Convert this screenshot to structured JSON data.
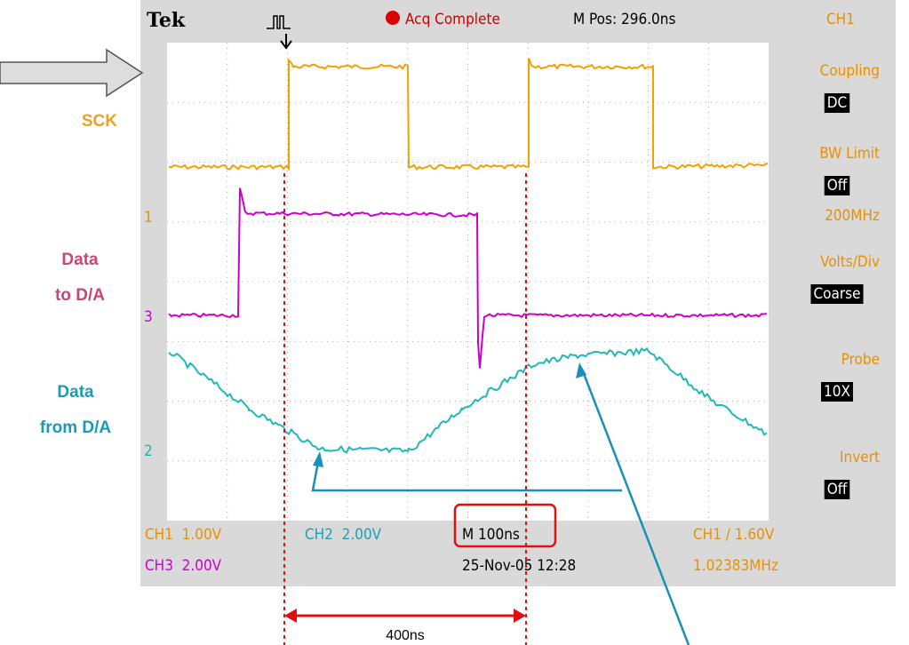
{
  "header": {
    "brand": "Tek",
    "status": "Acq Complete",
    "position": "M Pos: 296.0ns",
    "channel": "CH1"
  },
  "menu": [
    {
      "label": "Coupling",
      "value": "DC"
    },
    {
      "label": "BW Limit",
      "value": "Off",
      "extra": "200MHz"
    },
    {
      "label": "Volts/Div",
      "value": "Coarse"
    },
    {
      "label": "Probe",
      "value": "10X"
    },
    {
      "label": "Invert",
      "value": "Off"
    }
  ],
  "markers": [
    "1",
    "3",
    "2"
  ],
  "footer": {
    "ch1": "CH1  1.00V",
    "ch2": "CH2  2.00V",
    "timebase": "M 100ns",
    "trigger": "CH1 ∕ 1.60V",
    "ch3": "CH3  2.00V",
    "date": "25-Nov-05 12:28",
    "freq": "1.02383MHz"
  },
  "annotations": {
    "sck": "SCK",
    "data_to": [
      "Data",
      "to D/A"
    ],
    "data_from": [
      "Data",
      "from D/A"
    ],
    "period": "400ns"
  }
}
